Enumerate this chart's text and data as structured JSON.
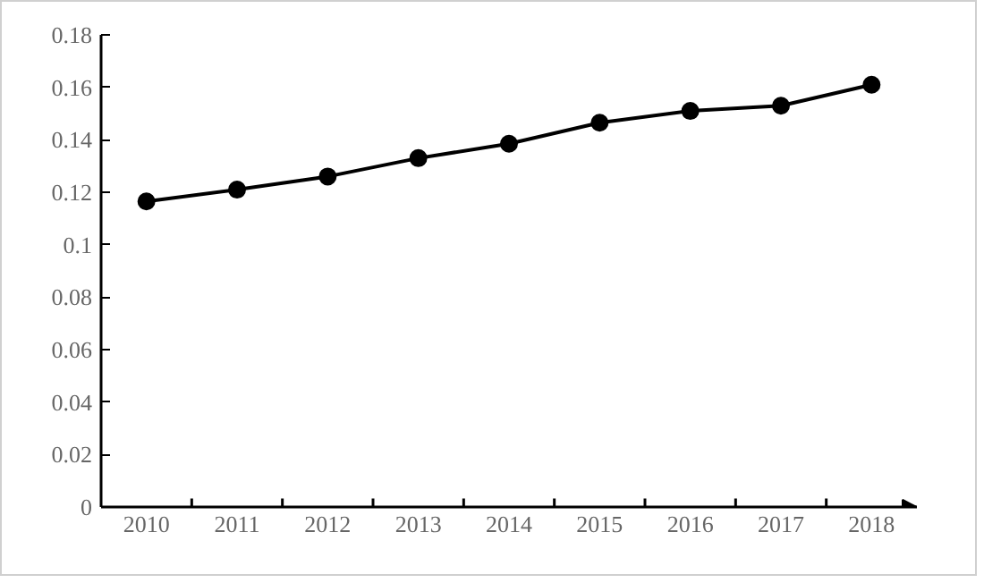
{
  "chart_data": {
    "type": "line",
    "categories": [
      "2010",
      "2011",
      "2012",
      "2013",
      "2014",
      "2015",
      "2016",
      "2017",
      "2018"
    ],
    "series": [
      {
        "color": "#000000",
        "values": [
          0.1165,
          0.121,
          0.126,
          0.133,
          0.1385,
          0.1465,
          0.151,
          0.153,
          0.161
        ]
      }
    ],
    "ylim": [
      0,
      0.18
    ],
    "yticks": [
      0,
      {
        "value": 0.02,
        "label": "0.02"
      },
      {
        "value": 0.04,
        "label": "0.04"
      },
      {
        "value": 0.06,
        "label": "0.06"
      },
      {
        "value": 0.08,
        "label": "0.08"
      },
      {
        "value": 0.1,
        "label": "0.1"
      },
      {
        "value": 0.12,
        "label": "0.12"
      },
      {
        "value": 0.14,
        "label": "0.14"
      },
      {
        "value": 0.16,
        "label": "0.16"
      },
      {
        "value": 0.18,
        "label": "0.18"
      }
    ],
    "marker": "circle",
    "line_style": "solid",
    "grid": false
  }
}
